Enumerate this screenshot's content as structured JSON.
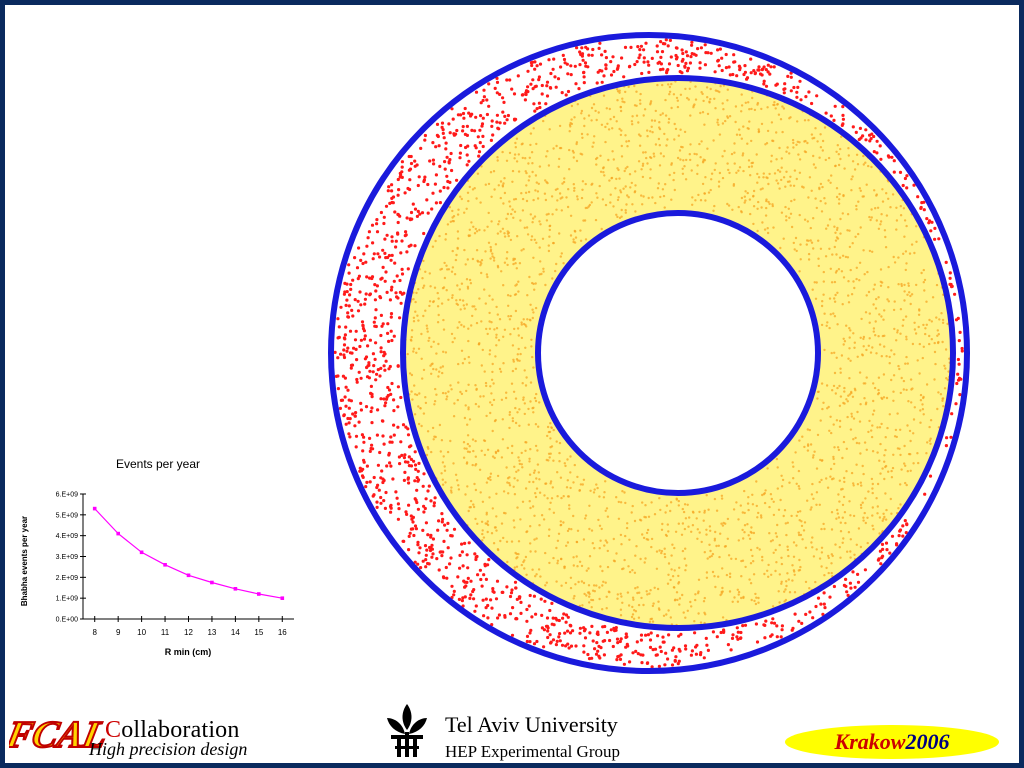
{
  "chart_data": {
    "type": "line",
    "title": "Events per year",
    "xlabel": "R min (cm)",
    "ylabel": "Bhabha events per year",
    "xlim": [
      7.5,
      16.5
    ],
    "ylim": [
      0,
      6000000000.0
    ],
    "x_ticks": [
      "8",
      "9",
      "10",
      "11",
      "12",
      "13",
      "14",
      "15",
      "16"
    ],
    "y_ticks": [
      "0.E+00",
      "1.E+09",
      "2.E+09",
      "3.E+09",
      "4.E+09",
      "5.E+09",
      "6.E+09"
    ],
    "x": [
      8,
      9,
      10,
      11,
      12,
      13,
      14,
      15,
      16
    ],
    "series": [
      {
        "values": [
          5300000000.0,
          4100000000.0,
          3200000000.0,
          2600000000.0,
          2100000000.0,
          1750000000.0,
          1450000000.0,
          1200000000.0,
          1000000000.0
        ]
      }
    ],
    "series_color": "#ff00ff",
    "grid": false,
    "legend": "none"
  },
  "figure": {
    "ring_color": "#1a1adc",
    "fill_color": "#fff38a",
    "inner_dot_color": "#f5a623",
    "outer_dot_color": "#ff1a1a"
  },
  "footer": {
    "logo_text": "FCAL",
    "collab_first": "C",
    "collab_rest": "ollaboration",
    "tagline": "High precision design",
    "university": "Tel Aviv University",
    "group": "HEP Experimental Group",
    "badge_city": "Krakow",
    "badge_year": "2006"
  }
}
